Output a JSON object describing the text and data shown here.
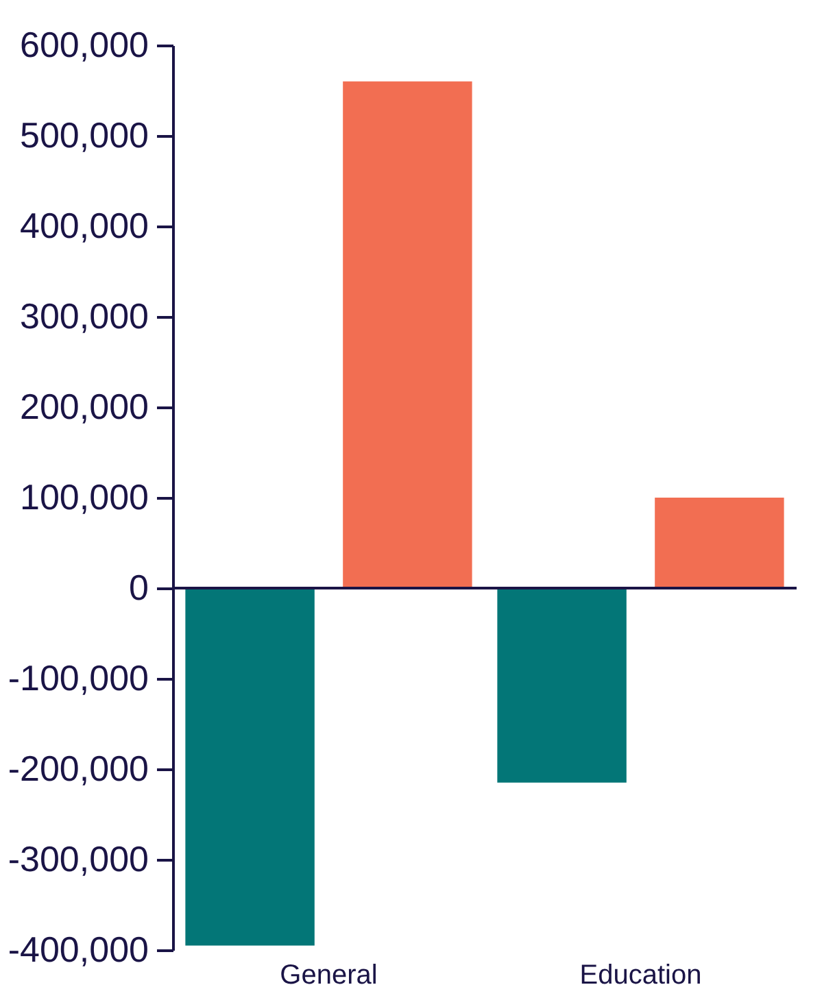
{
  "chart_data": {
    "type": "bar",
    "categories": [
      "General",
      "Education"
    ],
    "series": [
      {
        "color": "#037677",
        "values": [
          -395000,
          -215000
        ]
      },
      {
        "color": "#f26e52",
        "values": [
          560000,
          100000
        ]
      }
    ],
    "ylim": [
      -400000,
      600000
    ],
    "yticks": [
      {
        "value": -400000,
        "label": "-400,000"
      },
      {
        "value": -300000,
        "label": "-300,000"
      },
      {
        "value": -200000,
        "label": "-200,000"
      },
      {
        "value": -100000,
        "label": "-100,000"
      },
      0,
      {
        "value": 100000,
        "label": "100,000"
      },
      {
        "value": 200000,
        "label": "200,000"
      },
      {
        "value": 300000,
        "label": "300,000"
      },
      {
        "value": 400000,
        "label": "400,000"
      },
      {
        "value": 500000,
        "label": "500,000"
      },
      {
        "value": 600000,
        "label": "600,000"
      }
    ],
    "ref_lines": [
      {
        "axis": "y",
        "value": 0,
        "color": "#1a1446"
      }
    ],
    "grid": false
  }
}
